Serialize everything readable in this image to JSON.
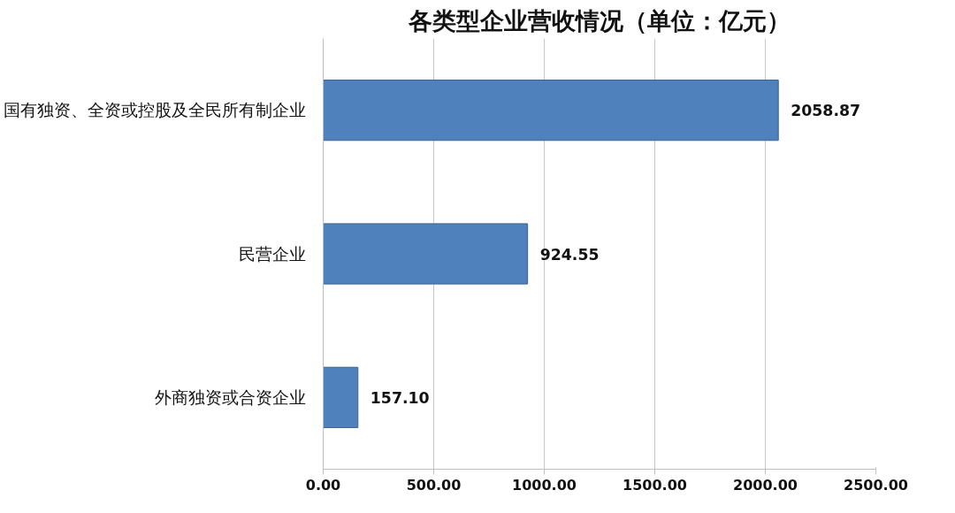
{
  "chart_data": {
    "type": "bar",
    "orientation": "horizontal",
    "title": "各类型企业营收情况（单位：亿元）",
    "categories": [
      "国有独资、全资或控股及全民所有制企业",
      "民营企业",
      "外商独资或合资企业"
    ],
    "values": [
      2058.87,
      924.55,
      157.1
    ],
    "color": "#4f81bd",
    "value_labels": [
      "2058.87",
      "924.55",
      "157.10"
    ],
    "xlim": [
      0,
      2500
    ],
    "xticks": [
      {
        "value": 0,
        "label": "0.00"
      },
      {
        "value": 500,
        "label": "500.00"
      },
      {
        "value": 1000,
        "label": "1000.00"
      },
      {
        "value": 1500,
        "label": "1500.00"
      },
      {
        "value": 2000,
        "label": "2000.00"
      },
      {
        "value": 2500,
        "label": "2500.00"
      }
    ],
    "grid": "x"
  }
}
